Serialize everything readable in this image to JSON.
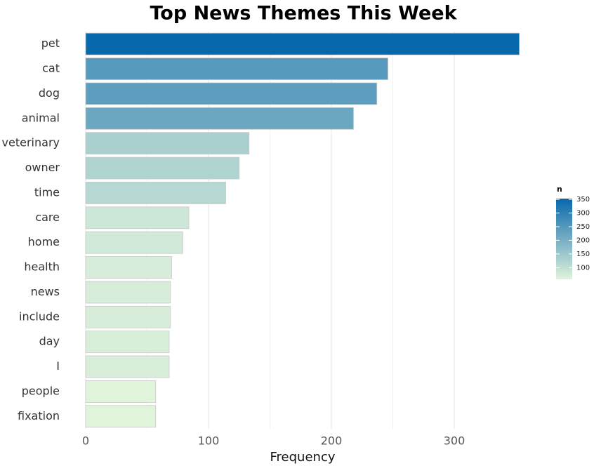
{
  "chart_data": {
    "type": "bar",
    "orientation": "horizontal",
    "title": "Top News Themes This Week",
    "x_label": "Frequency",
    "categories": [
      "pet",
      "cat",
      "dog",
      "animal",
      "veterinary",
      "owner",
      "time",
      "care",
      "home",
      "health",
      "news",
      "include",
      "day",
      "I",
      "people",
      "fixation"
    ],
    "values": [
      353,
      246,
      237,
      218,
      133,
      125,
      114,
      84,
      79,
      70,
      69,
      69,
      68,
      68,
      57,
      57
    ],
    "xlim": [
      0,
      370
    ],
    "xticks": [
      0,
      100,
      200,
      300
    ],
    "grid": true,
    "color_low": "#e0f3db",
    "color_high": "#0868ac",
    "legend_title": "n",
    "legend_ticks": [
      100,
      150,
      200,
      250,
      300,
      350
    ]
  }
}
